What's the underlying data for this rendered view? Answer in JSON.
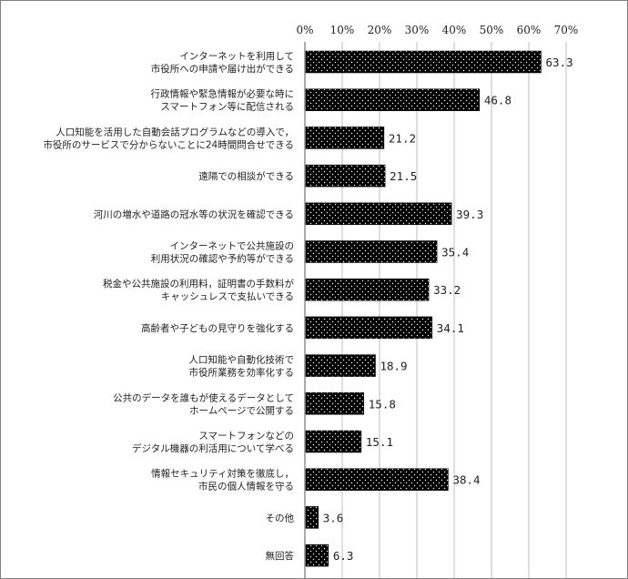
{
  "chart_data": {
    "type": "bar",
    "orientation": "horizontal",
    "xlim": [
      0,
      70
    ],
    "ticks": [
      "0%",
      "10%",
      "20%",
      "30%",
      "40%",
      "50%",
      "60%",
      "70%"
    ],
    "grid": true,
    "bar_pattern": "black with white dots",
    "categories": [
      [
        "インターネットを利用して",
        "市役所への申請や届け出ができる"
      ],
      [
        "行政情報や緊急情報が必要な時に",
        "スマートフォン等に配信される"
      ],
      [
        "人口知能を活用した自動会話プログラムなどの導入で，",
        "市役所のサービスで分からないことに24時間問合せできる"
      ],
      [
        "遠隔での相談ができる"
      ],
      [
        "河川の増水や道路の冠水等の状況を確認できる"
      ],
      [
        "インターネットで公共施設の",
        "利用状況の確認や予約等ができる"
      ],
      [
        "税金や公共施設の利用料，証明書の手数料が",
        "キャッシュレスで支払いできる"
      ],
      [
        "高齢者や子どもの見守りを強化する"
      ],
      [
        "人口知能や自動化技術で",
        "市役所業務を効率化する"
      ],
      [
        "公共のデータを誰もが使えるデータとして",
        "ホームページで公開する"
      ],
      [
        "スマートフォンなどの",
        "デジタル機器の利活用について学べる"
      ],
      [
        "情報セキュリティ対策を徹底し，",
        "市民の個人情報を守る"
      ],
      [
        "その他"
      ],
      [
        "無回答"
      ]
    ],
    "values": [
      63.3,
      46.8,
      21.2,
      21.5,
      39.3,
      35.4,
      33.2,
      34.1,
      18.9,
      15.8,
      15.1,
      38.4,
      3.6,
      6.3
    ],
    "value_labels": [
      "63.3",
      "46.8",
      "21.2",
      "21.5",
      "39.3",
      "35.4",
      "33.2",
      "34.1",
      "18.9",
      "15.8",
      "15.1",
      "38.4",
      "3.6",
      "6.3"
    ]
  }
}
